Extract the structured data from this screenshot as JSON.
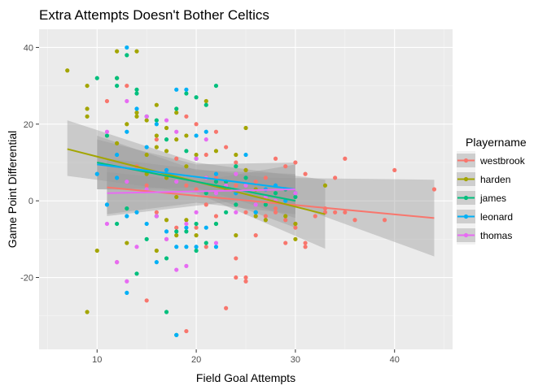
{
  "chart_data": {
    "type": "scatter",
    "title": "Extra Attempts Doesn't Bother Celtics",
    "xlabel": "Field Goal Attempts",
    "ylabel": "Game Point Differential",
    "xlim": [
      4.15,
      45.85
    ],
    "ylim": [
      -38.75,
      44.75
    ],
    "xticks": [
      10,
      20,
      30,
      40
    ],
    "yticks": [
      -20,
      0,
      20,
      40
    ],
    "xtick_labels": [
      "10",
      "20",
      "30",
      "40"
    ],
    "ytick_labels": [
      "-20",
      "0",
      "20",
      "40"
    ],
    "grid": true,
    "legend_position": "right",
    "legend_title": "Playername",
    "colors": {
      "panel_bg": "#EBEBEB",
      "grid_major": "#FFFFFF",
      "ribbon": "#999999"
    },
    "series": [
      {
        "name": "westbrook",
        "color": "#F8766D",
        "points": [
          [
            11,
            26
          ],
          [
            12,
            -16
          ],
          [
            13,
            30
          ],
          [
            14,
            9
          ],
          [
            15,
            -26
          ],
          [
            15,
            4
          ],
          [
            16,
            16
          ],
          [
            16,
            -3
          ],
          [
            17,
            8
          ],
          [
            17,
            -10
          ],
          [
            18,
            11
          ],
          [
            18,
            -7
          ],
          [
            19,
            -34
          ],
          [
            19,
            22
          ],
          [
            19,
            4
          ],
          [
            20,
            20
          ],
          [
            20,
            -7
          ],
          [
            20,
            3
          ],
          [
            21,
            12
          ],
          [
            21,
            -1
          ],
          [
            21,
            -12
          ],
          [
            22,
            -4
          ],
          [
            22,
            18
          ],
          [
            22,
            6
          ],
          [
            23,
            -28
          ],
          [
            23,
            14
          ],
          [
            23,
            3
          ],
          [
            24,
            -20
          ],
          [
            24,
            10
          ],
          [
            24,
            -15
          ],
          [
            24,
            4
          ],
          [
            25,
            -20
          ],
          [
            25,
            -21
          ],
          [
            25,
            -3
          ],
          [
            25,
            8
          ],
          [
            26,
            5
          ],
          [
            26,
            -9
          ],
          [
            27,
            6
          ],
          [
            27,
            -4
          ],
          [
            28,
            -3
          ],
          [
            28,
            11
          ],
          [
            28,
            -2
          ],
          [
            29,
            -5
          ],
          [
            29,
            9
          ],
          [
            29,
            -11
          ],
          [
            29,
            3
          ],
          [
            30,
            -6
          ],
          [
            30,
            -7
          ],
          [
            30,
            10
          ],
          [
            31,
            -11
          ],
          [
            31,
            -12
          ],
          [
            31,
            7
          ],
          [
            32,
            -4
          ],
          [
            33,
            -2
          ],
          [
            33,
            -3
          ],
          [
            34,
            6
          ],
          [
            34,
            -3
          ],
          [
            35,
            11
          ],
          [
            35,
            -3
          ],
          [
            36,
            -5
          ],
          [
            39,
            -5
          ],
          [
            40,
            8
          ],
          [
            44,
            3
          ]
        ],
        "fit": {
          "x": [
            11,
            44
          ],
          "y": [
            3.5,
            -4.5
          ],
          "se_x": [
            11,
            27.5,
            44
          ],
          "se_lo": [
            -4,
            1,
            -14.5
          ],
          "se_hi": [
            11,
            6,
            5.5
          ]
        }
      },
      {
        "name": "harden",
        "color": "#A3A500",
        "points": [
          [
            7,
            34
          ],
          [
            9,
            30
          ],
          [
            9,
            24
          ],
          [
            9,
            22
          ],
          [
            9,
            -29
          ],
          [
            10,
            -13
          ],
          [
            12,
            39
          ],
          [
            12,
            32
          ],
          [
            12,
            15
          ],
          [
            13,
            20
          ],
          [
            13,
            -11
          ],
          [
            14,
            39
          ],
          [
            14,
            23
          ],
          [
            14,
            22
          ],
          [
            15,
            21
          ],
          [
            15,
            12
          ],
          [
            15,
            7
          ],
          [
            16,
            25
          ],
          [
            16,
            17
          ],
          [
            16,
            14
          ],
          [
            16,
            -13
          ],
          [
            17,
            19
          ],
          [
            17,
            13
          ],
          [
            17,
            6
          ],
          [
            17,
            -5
          ],
          [
            18,
            23
          ],
          [
            18,
            16
          ],
          [
            18,
            1
          ],
          [
            18,
            -9
          ],
          [
            19,
            17
          ],
          [
            19,
            9
          ],
          [
            19,
            -5
          ],
          [
            20,
            12
          ],
          [
            20,
            -9
          ],
          [
            21,
            26
          ],
          [
            21,
            6
          ],
          [
            22,
            13
          ],
          [
            22,
            -6
          ],
          [
            23,
            4
          ],
          [
            24,
            12
          ],
          [
            24,
            -9
          ],
          [
            25,
            19
          ],
          [
            25,
            8
          ],
          [
            26,
            3
          ],
          [
            26,
            -4
          ],
          [
            27,
            -5
          ],
          [
            29,
            -4
          ],
          [
            30,
            -6
          ],
          [
            30,
            -10
          ],
          [
            33,
            4
          ]
        ],
        "fit": {
          "x": [
            7,
            33
          ],
          "y": [
            13.5,
            -3.5
          ],
          "se_x": [
            7,
            20,
            33
          ],
          "se_lo": [
            6.5,
            2,
            -12.5
          ],
          "se_hi": [
            21,
            10,
            5.5
          ]
        }
      },
      {
        "name": "james",
        "color": "#00BF7D",
        "points": [
          [
            10,
            32
          ],
          [
            11,
            17
          ],
          [
            12,
            32
          ],
          [
            12,
            30
          ],
          [
            12,
            -6
          ],
          [
            13,
            38
          ],
          [
            13,
            -2
          ],
          [
            14,
            29
          ],
          [
            14,
            28
          ],
          [
            14,
            -19
          ],
          [
            15,
            22
          ],
          [
            15,
            -10
          ],
          [
            16,
            21
          ],
          [
            16,
            -4
          ],
          [
            17,
            -29
          ],
          [
            17,
            -15
          ],
          [
            17,
            16
          ],
          [
            18,
            -35
          ],
          [
            18,
            24
          ],
          [
            18,
            -8
          ],
          [
            19,
            28
          ],
          [
            19,
            -8
          ],
          [
            19,
            13
          ],
          [
            20,
            27
          ],
          [
            20,
            11
          ],
          [
            20,
            -6
          ],
          [
            20,
            -13
          ],
          [
            21,
            25
          ],
          [
            21,
            2
          ],
          [
            21,
            -11
          ],
          [
            22,
            30
          ],
          [
            22,
            -6
          ],
          [
            22,
            5
          ],
          [
            23,
            5
          ],
          [
            23,
            -3
          ],
          [
            24,
            9
          ],
          [
            24,
            -1
          ],
          [
            25,
            6
          ],
          [
            26,
            -3
          ],
          [
            27,
            -1
          ],
          [
            28,
            2
          ],
          [
            29,
            3
          ],
          [
            30,
            1
          ]
        ],
        "fit": {
          "x": [
            10,
            30
          ],
          "y": [
            10,
            0
          ],
          "se_x": [
            10,
            20,
            30
          ],
          "se_lo": [
            3,
            2.5,
            -7
          ],
          "se_hi": [
            17,
            8,
            7
          ]
        }
      },
      {
        "name": "leonard",
        "color": "#00B0F6",
        "points": [
          [
            10,
            7
          ],
          [
            11,
            -1
          ],
          [
            12,
            12
          ],
          [
            12,
            6
          ],
          [
            13,
            40
          ],
          [
            13,
            18
          ],
          [
            13,
            -24
          ],
          [
            13,
            -4
          ],
          [
            14,
            24
          ],
          [
            14,
            -3
          ],
          [
            15,
            14
          ],
          [
            15,
            -6
          ],
          [
            16,
            20
          ],
          [
            16,
            -16
          ],
          [
            17,
            8
          ],
          [
            17,
            -8
          ],
          [
            18,
            29
          ],
          [
            18,
            -35
          ],
          [
            18,
            -12
          ],
          [
            19,
            29
          ],
          [
            19,
            -7
          ],
          [
            19,
            -12
          ],
          [
            20,
            17
          ],
          [
            20,
            -12
          ],
          [
            21,
            18
          ],
          [
            21,
            -7
          ],
          [
            22,
            7
          ],
          [
            22,
            -12
          ],
          [
            23,
            3
          ],
          [
            24,
            2
          ],
          [
            25,
            12
          ],
          [
            26,
            -3
          ],
          [
            27,
            3
          ],
          [
            28,
            4
          ],
          [
            29,
            0
          ],
          [
            30,
            2
          ]
        ],
        "fit": {
          "x": [
            10,
            30
          ],
          "y": [
            9.5,
            3
          ],
          "se_x": [
            10,
            20,
            30
          ],
          "se_lo": [
            3,
            3.5,
            -4.5
          ],
          "se_hi": [
            16,
            9.5,
            10
          ]
        }
      },
      {
        "name": "thomas",
        "color": "#E76BF3",
        "points": [
          [
            11,
            18
          ],
          [
            11,
            -6
          ],
          [
            12,
            -16
          ],
          [
            13,
            26
          ],
          [
            13,
            5
          ],
          [
            13,
            -21
          ],
          [
            14,
            -12
          ],
          [
            15,
            22
          ],
          [
            15,
            3
          ],
          [
            16,
            -4
          ],
          [
            17,
            -10
          ],
          [
            17,
            21
          ],
          [
            18,
            -18
          ],
          [
            18,
            18
          ],
          [
            18,
            5
          ],
          [
            19,
            -6
          ],
          [
            19,
            -17
          ],
          [
            20,
            11
          ],
          [
            20,
            -3
          ],
          [
            21,
            6
          ],
          [
            21,
            16
          ],
          [
            22,
            -11
          ],
          [
            22,
            2
          ],
          [
            23,
            4
          ],
          [
            24,
            -3
          ],
          [
            24,
            7
          ],
          [
            25,
            4
          ],
          [
            26,
            -1
          ],
          [
            27,
            1
          ],
          [
            28,
            0
          ],
          [
            30,
            2
          ]
        ],
        "fit": {
          "x": [
            11,
            30
          ],
          "y": [
            2,
            3
          ],
          "se_x": [
            11,
            20,
            30
          ],
          "se_lo": [
            -3.5,
            -0.5,
            -3.5
          ],
          "se_hi": [
            7.5,
            5,
            9.5
          ]
        }
      }
    ]
  }
}
